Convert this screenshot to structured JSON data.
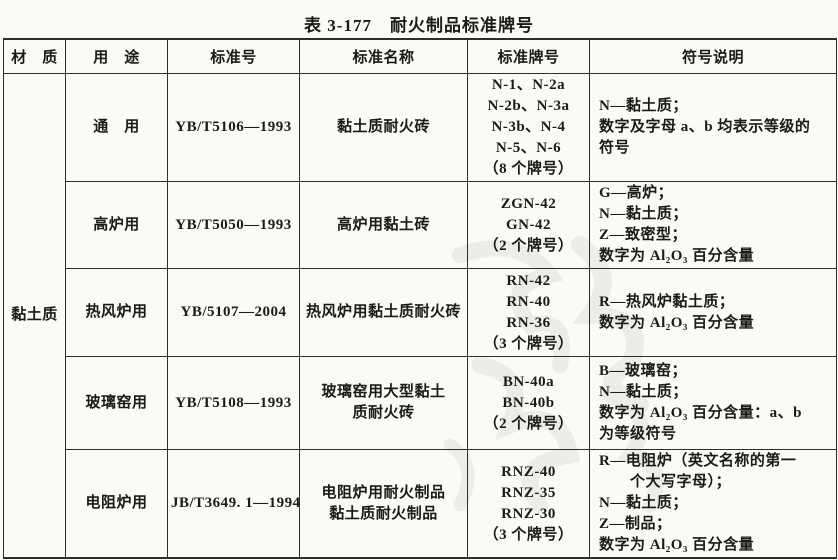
{
  "title": "表 3-177　耐火制品标准牌号",
  "table": {
    "headers": [
      "材　质",
      "用　途",
      "标准号",
      "标准名称",
      "标准牌号",
      "符号说明"
    ],
    "material": "黏土质",
    "rows": [
      {
        "use": "通　用",
        "standard_no": "YB/T5106—1993",
        "name_lines": [
          "黏土质耐火砖"
        ],
        "grade_lines": [
          "N-1、N-2a",
          "N-2b、N-3a",
          "N-3b、N-4",
          "N-5、N-6",
          "（8 个牌号）"
        ],
        "symbol_lines": [
          "N—黏土质；",
          "数字及字母 a、b 均表示等级的",
          "符号"
        ]
      },
      {
        "use": "高炉用",
        "standard_no": "YB/T5050—1993",
        "name_lines": [
          "高炉用黏土砖"
        ],
        "grade_lines": [
          "ZGN-42",
          "GN-42",
          "（2 个牌号）"
        ],
        "symbol_lines": [
          "G—高炉；",
          "N—黏土质；",
          "Z—致密型；",
          "数字为 Al₂O₃ 百分含量"
        ]
      },
      {
        "use": "热风炉用",
        "standard_no": "YB/5107—2004",
        "name_lines": [
          "热风炉用黏土质耐火砖"
        ],
        "grade_lines": [
          "RN-42",
          "RN-40",
          "RN-36",
          "（3 个牌号）"
        ],
        "symbol_lines": [
          "R—热风炉黏土质；",
          "数字为 Al₂O₃ 百分含量"
        ]
      },
      {
        "use": "玻璃窑用",
        "standard_no": "YB/T5108—1993",
        "name_lines": [
          "玻璃窑用大型黏土",
          "质耐火砖"
        ],
        "grade_lines": [
          "BN-40a",
          "BN-40b",
          "（2 个牌号）"
        ],
        "symbol_lines": [
          "B—玻璃窑；",
          "N—黏土质；",
          "数字为 Al₂O₃ 百分含量：a、b",
          "为等级符号"
        ]
      },
      {
        "use": "电阻炉用",
        "standard_no": "JB/T3649. 1—1994",
        "name_lines": [
          "电阻炉用耐火制品",
          "黏土质耐火制品"
        ],
        "grade_lines": [
          "RNZ-40",
          "RNZ-35",
          "RNZ-30",
          "（3 个牌号）"
        ],
        "symbol_lines": [
          "R—电阻炉（英文名称的第一",
          "　　个大写字母）；",
          "N—黏土质；",
          "Z—制品；",
          "数字为 Al₂O₃ 百分含量"
        ]
      }
    ]
  }
}
